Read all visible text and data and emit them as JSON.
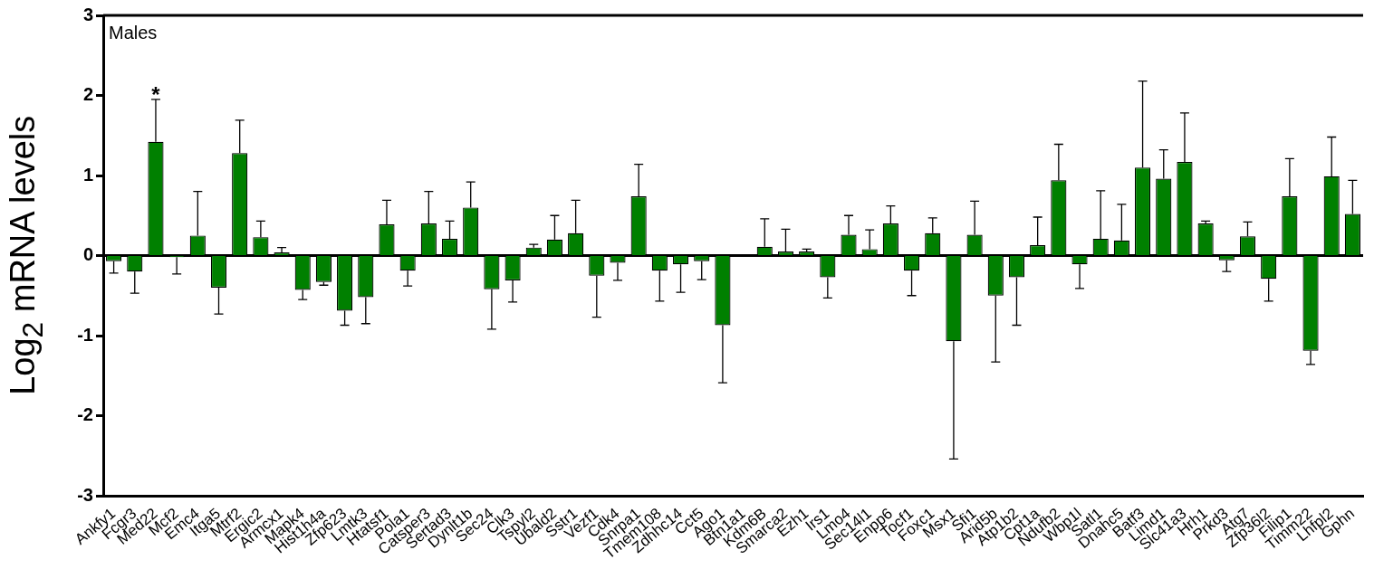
{
  "chart_data": {
    "type": "bar",
    "ylabel": "Log$_{2}$ mRNA levels",
    "color": "#008000",
    "categories": [
      "Ankfy1",
      "Fcgr3",
      "Med22",
      "Mcf2",
      "Emc4",
      "Itga5",
      "Mtrf2",
      "Ergic2",
      "Armcx1",
      "Mapk4",
      "Hist1h4a",
      "Zfp623",
      "Lmtk3",
      "Htatsf1",
      "Pola1",
      "Catsper3",
      "Sertad3",
      "Dynlt1b",
      "Sec24",
      "Clk3",
      "Tspyl2",
      "Ubald2",
      "Sstr1",
      "Vezf1",
      "Cdk4",
      "Snrpa1",
      "Tmem108",
      "Zdhhc14",
      "Cct5",
      "Ago1",
      "Btn1a1",
      "Kdm6B",
      "Smarca2",
      "Ezh1",
      "Irs1",
      "Lmo4",
      "Sec14l1",
      "Enpp6",
      "Tocf1",
      "Foxc1",
      "Msx1",
      "Sfi1",
      "Arid5b",
      "Atp1b2",
      "Cpt1a",
      "Ndufb2",
      "Wbp1l",
      "Satl1",
      "Dnahc5",
      "Batf3",
      "Limd1",
      "Slc41a3",
      "Hrh1",
      "Prkd3",
      "Atg7",
      "Zfp36l2",
      "Filip1",
      "Timm22",
      "Lhfpl2",
      "Gphn"
    ],
    "values": [
      -0.07,
      -0.2,
      1.42,
      -0.02,
      0.25,
      -0.4,
      1.28,
      0.23,
      0.04,
      -0.43,
      -0.33,
      -0.69,
      -0.52,
      0.39,
      -0.19,
      0.4,
      0.21,
      0.6,
      -0.42,
      -0.31,
      0.1,
      0.2,
      0.28,
      -0.25,
      -0.09,
      0.74,
      -0.19,
      -0.11,
      -0.07,
      -0.87,
      null,
      0.11,
      0.05,
      0.05,
      -0.27,
      0.26,
      0.08,
      0.4,
      -0.19,
      0.28,
      -1.07,
      0.26,
      -0.5,
      -0.27,
      0.13,
      0.94,
      -0.11,
      0.21,
      0.19,
      1.1,
      0.96,
      1.17,
      0.4,
      -0.06,
      0.24,
      -0.29,
      0.74,
      -1.19,
      0.99,
      0.52
    ],
    "errors": [
      [
        -0.22,
        -0.07
      ],
      [
        -0.47,
        -0.2
      ],
      [
        1.42,
        1.95
      ],
      [
        -0.23,
        -0.02
      ],
      [
        0.25,
        0.8
      ],
      [
        -0.73,
        -0.4
      ],
      [
        1.28,
        1.69
      ],
      [
        0.23,
        0.43
      ],
      [
        0.04,
        0.1
      ],
      [
        -0.55,
        -0.43
      ],
      [
        -0.37,
        -0.33
      ],
      [
        -0.87,
        -0.69
      ],
      [
        -0.85,
        -0.52
      ],
      [
        0.39,
        0.69
      ],
      [
        -0.38,
        -0.19
      ],
      [
        0.4,
        0.8
      ],
      [
        0.21,
        0.43
      ],
      [
        0.6,
        0.92
      ],
      [
        -0.92,
        -0.42
      ],
      [
        -0.58,
        -0.31
      ],
      [
        0.1,
        0.14
      ],
      [
        0.2,
        0.5
      ],
      [
        0.28,
        0.69
      ],
      [
        -0.77,
        -0.25
      ],
      [
        -0.31,
        -0.09
      ],
      [
        0.74,
        1.14
      ],
      [
        -0.57,
        -0.19
      ],
      [
        -0.46,
        -0.11
      ],
      [
        -0.3,
        -0.07
      ],
      [
        -1.59,
        -0.87
      ],
      null,
      [
        0.11,
        0.46
      ],
      [
        0.05,
        0.33
      ],
      [
        0.05,
        0.08
      ],
      [
        -0.53,
        -0.27
      ],
      [
        0.26,
        0.5
      ],
      [
        0.08,
        0.32
      ],
      [
        0.4,
        0.62
      ],
      [
        -0.5,
        -0.19
      ],
      [
        0.28,
        0.47
      ],
      [
        -2.54,
        -1.07
      ],
      [
        0.26,
        0.68
      ],
      [
        -1.33,
        -0.5
      ],
      [
        -0.87,
        -0.27
      ],
      [
        0.13,
        0.48
      ],
      [
        0.94,
        1.39
      ],
      [
        -0.41,
        -0.11
      ],
      [
        0.21,
        0.81
      ],
      [
        0.19,
        0.64
      ],
      [
        1.1,
        2.18
      ],
      [
        0.96,
        1.32
      ],
      [
        1.17,
        1.78
      ],
      [
        0.4,
        0.43
      ],
      [
        -0.2,
        -0.06
      ],
      [
        0.24,
        0.42
      ],
      [
        -0.57,
        -0.29
      ],
      [
        0.74,
        1.21
      ],
      [
        -1.36,
        -1.19
      ],
      [
        0.99,
        1.48
      ],
      [
        0.52,
        0.94
      ]
    ],
    "ylim": [
      -3,
      3
    ],
    "yticks": [
      -3,
      -2,
      -1,
      0,
      1,
      2,
      3
    ],
    "annotations": [
      "Males",
      {
        "text": "*",
        "x": "Med22",
        "y": 1.95
      }
    ]
  }
}
